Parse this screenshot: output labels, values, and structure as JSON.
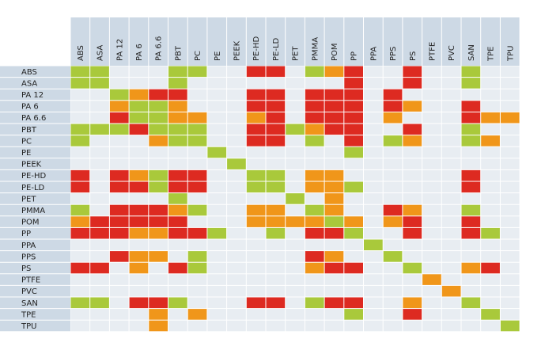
{
  "chart_data": {
    "type": "heatmap",
    "title": "",
    "materials": [
      "ABS",
      "ASA",
      "PA 12",
      "PA 6",
      "PA 6.6",
      "PBT",
      "PC",
      "PE",
      "PEEK",
      "PE-HD",
      "PE-LD",
      "PET",
      "PMMA",
      "POM",
      "PP",
      "PPA",
      "PPS",
      "PS",
      "PTFE",
      "PVC",
      "SAN",
      "TPE",
      "TPU"
    ],
    "row_labels": [
      "ABS",
      "ASA",
      "PA 12",
      "PA 6",
      "PA 6.6",
      "PBT",
      "PC",
      "PE",
      "PEEK",
      "PE-HD",
      "PE-LD",
      "PET",
      "PMMA",
      "POM",
      "PP",
      "PPA",
      "PPS",
      "PS",
      "PTFE",
      "PVC",
      "SAN",
      "TPE",
      "TPU"
    ],
    "legend": {
      "G": {
        "color": "#a9c93b"
      },
      "O": {
        "color": "#f0961a"
      },
      "R": {
        "color": "#dd2a21"
      },
      "E": {
        "color": "#e8edf2"
      }
    },
    "colors": {
      "header_bg": "#cdd9e5",
      "row_label_bg": "#cdd9e5",
      "empty_cell": "#e8edf2",
      "grid_line": "#ffffff"
    },
    "cells": [
      [
        "G",
        "G",
        "E",
        "E",
        "E",
        "G",
        "G",
        "E",
        "E",
        "R",
        "R",
        "E",
        "G",
        "O",
        "R",
        "E",
        "E",
        "R",
        "E",
        "E",
        "G",
        "E",
        "E"
      ],
      [
        "G",
        "G",
        "E",
        "E",
        "E",
        "G",
        "E",
        "E",
        "E",
        "E",
        "E",
        "E",
        "E",
        "E",
        "R",
        "E",
        "E",
        "R",
        "E",
        "E",
        "G",
        "E",
        "E"
      ],
      [
        "E",
        "E",
        "G",
        "O",
        "R",
        "R",
        "E",
        "E",
        "E",
        "R",
        "R",
        "E",
        "R",
        "R",
        "R",
        "E",
        "R",
        "E",
        "E",
        "E",
        "E",
        "E",
        "E"
      ],
      [
        "E",
        "E",
        "O",
        "G",
        "G",
        "O",
        "E",
        "E",
        "E",
        "R",
        "R",
        "E",
        "R",
        "R",
        "R",
        "E",
        "R",
        "O",
        "E",
        "E",
        "R",
        "E",
        "E"
      ],
      [
        "E",
        "E",
        "R",
        "G",
        "G",
        "O",
        "O",
        "E",
        "E",
        "O",
        "R",
        "E",
        "R",
        "R",
        "R",
        "E",
        "O",
        "E",
        "E",
        "E",
        "R",
        "O",
        "O"
      ],
      [
        "G",
        "G",
        "G",
        "R",
        "G",
        "G",
        "G",
        "E",
        "E",
        "R",
        "R",
        "G",
        "O",
        "R",
        "R",
        "E",
        "E",
        "R",
        "E",
        "E",
        "G",
        "E",
        "E"
      ],
      [
        "G",
        "E",
        "E",
        "E",
        "O",
        "G",
        "G",
        "E",
        "E",
        "R",
        "R",
        "E",
        "G",
        "E",
        "R",
        "E",
        "G",
        "O",
        "E",
        "E",
        "G",
        "O",
        "E"
      ],
      [
        "E",
        "E",
        "E",
        "E",
        "E",
        "E",
        "E",
        "G",
        "E",
        "E",
        "E",
        "E",
        "E",
        "E",
        "G",
        "E",
        "E",
        "E",
        "E",
        "E",
        "E",
        "E",
        "E"
      ],
      [
        "E",
        "E",
        "E",
        "E",
        "E",
        "E",
        "E",
        "E",
        "G",
        "E",
        "E",
        "E",
        "E",
        "E",
        "E",
        "E",
        "E",
        "E",
        "E",
        "E",
        "E",
        "E",
        "E"
      ],
      [
        "R",
        "E",
        "R",
        "O",
        "G",
        "R",
        "R",
        "E",
        "E",
        "G",
        "G",
        "E",
        "O",
        "O",
        "E",
        "E",
        "E",
        "E",
        "E",
        "E",
        "R",
        "E",
        "E"
      ],
      [
        "R",
        "E",
        "R",
        "R",
        "G",
        "R",
        "R",
        "E",
        "E",
        "G",
        "G",
        "E",
        "O",
        "O",
        "G",
        "E",
        "E",
        "E",
        "E",
        "E",
        "R",
        "E",
        "E"
      ],
      [
        "E",
        "E",
        "E",
        "E",
        "E",
        "G",
        "E",
        "E",
        "E",
        "E",
        "E",
        "G",
        "E",
        "O",
        "E",
        "E",
        "E",
        "E",
        "E",
        "E",
        "E",
        "E",
        "E"
      ],
      [
        "G",
        "E",
        "R",
        "R",
        "R",
        "O",
        "G",
        "E",
        "E",
        "O",
        "O",
        "E",
        "G",
        "O",
        "E",
        "E",
        "R",
        "O",
        "E",
        "E",
        "G",
        "E",
        "E"
      ],
      [
        "O",
        "R",
        "R",
        "R",
        "R",
        "R",
        "E",
        "E",
        "E",
        "O",
        "O",
        "O",
        "O",
        "G",
        "O",
        "E",
        "O",
        "R",
        "E",
        "E",
        "R",
        "E",
        "E"
      ],
      [
        "R",
        "R",
        "R",
        "O",
        "O",
        "R",
        "R",
        "G",
        "E",
        "E",
        "G",
        "E",
        "R",
        "R",
        "G",
        "E",
        "E",
        "R",
        "E",
        "E",
        "R",
        "G",
        "E"
      ],
      [
        "E",
        "E",
        "E",
        "E",
        "E",
        "E",
        "E",
        "E",
        "E",
        "E",
        "E",
        "E",
        "E",
        "E",
        "E",
        "G",
        "E",
        "E",
        "E",
        "E",
        "E",
        "E",
        "E"
      ],
      [
        "E",
        "E",
        "R",
        "O",
        "O",
        "E",
        "G",
        "E",
        "E",
        "E",
        "E",
        "E",
        "R",
        "O",
        "E",
        "E",
        "G",
        "E",
        "E",
        "E",
        "E",
        "E",
        "E"
      ],
      [
        "R",
        "R",
        "E",
        "O",
        "E",
        "R",
        "G",
        "E",
        "E",
        "E",
        "E",
        "E",
        "O",
        "R",
        "R",
        "E",
        "E",
        "G",
        "E",
        "E",
        "O",
        "R",
        "E"
      ],
      [
        "E",
        "E",
        "E",
        "E",
        "E",
        "E",
        "E",
        "E",
        "E",
        "E",
        "E",
        "E",
        "E",
        "E",
        "E",
        "E",
        "E",
        "E",
        "O",
        "E",
        "E",
        "E",
        "E"
      ],
      [
        "E",
        "E",
        "E",
        "E",
        "E",
        "E",
        "E",
        "E",
        "E",
        "E",
        "E",
        "E",
        "E",
        "E",
        "E",
        "E",
        "E",
        "E",
        "E",
        "O",
        "E",
        "E",
        "E"
      ],
      [
        "G",
        "G",
        "E",
        "R",
        "R",
        "G",
        "E",
        "E",
        "E",
        "R",
        "R",
        "E",
        "G",
        "R",
        "R",
        "E",
        "E",
        "O",
        "E",
        "E",
        "G",
        "E",
        "E"
      ],
      [
        "E",
        "E",
        "E",
        "E",
        "O",
        "E",
        "O",
        "E",
        "E",
        "E",
        "E",
        "E",
        "E",
        "E",
        "G",
        "E",
        "E",
        "R",
        "E",
        "E",
        "E",
        "G",
        "E"
      ],
      [
        "E",
        "E",
        "E",
        "E",
        "O",
        "E",
        "E",
        "E",
        "E",
        "E",
        "E",
        "E",
        "E",
        "E",
        "E",
        "E",
        "E",
        "E",
        "E",
        "E",
        "E",
        "E",
        "G"
      ]
    ]
  }
}
